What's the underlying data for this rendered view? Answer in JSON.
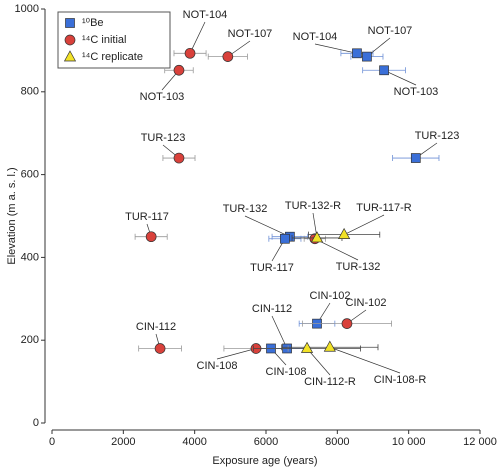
{
  "chart_data": {
    "type": "scatter",
    "x_label": "Exposure age (years)",
    "y_label": "Elevation (m a. s. l.)",
    "xlim": [
      0,
      12000
    ],
    "xticks": [
      0,
      2000,
      4000,
      6000,
      8000,
      {
        "value": 10000,
        "label": "10 000"
      },
      {
        "value": 12000,
        "label": "12 000"
      }
    ],
    "ylim": [
      0,
      1000
    ],
    "yticks": [
      0,
      200,
      400,
      600,
      800,
      1000
    ],
    "legend": "upper left",
    "series": [
      {
        "name": "¹⁰Be",
        "color": "#3a6fd8",
        "marker": "square",
        "labels": [
          "NOT-104",
          "NOT-107",
          "NOT-103",
          "TUR-123",
          "TUR-132",
          "TUR-117",
          "CIN-102",
          "CIN-112",
          "CIN-108"
        ],
        "x": [
          8550,
          8830,
          9310,
          10200,
          6670,
          6530,
          7430,
          6590,
          6140
        ],
        "values": [
          893,
          885,
          852,
          640,
          450,
          445,
          240,
          180,
          180
        ],
        "errors": [
          450,
          450,
          600,
          650,
          500,
          450,
          500,
          500,
          500
        ]
      },
      {
        "name": "¹⁴C initial",
        "color": "#d9413b",
        "marker": "circle",
        "labels": [
          "NOT-104",
          "NOT-107",
          "NOT-103",
          "TUR-123",
          "TUR-117",
          "TUR-132",
          "CIN-102",
          "CIN-112",
          "CIN-108"
        ],
        "x": [
          3870,
          4930,
          3560,
          3560,
          2780,
          7370,
          8270,
          3030,
          5720
        ],
        "values": [
          893,
          885,
          852,
          640,
          450,
          445,
          240,
          180,
          180
        ],
        "errors": [
          450,
          550,
          400,
          450,
          450,
          300,
          1250,
          600,
          900
        ]
      },
      {
        "name": "¹⁴C replicate",
        "color": "#f2e227",
        "marker": "triangle",
        "labels": [
          "TUR-132-R",
          "TUR-117-R",
          "CIN-112-R",
          "CIN-108-R"
        ],
        "x": [
          7430,
          8190,
          7150,
          7790
        ],
        "values": [
          447,
          455,
          180,
          183
        ],
        "errors": [
          700,
          1000,
          1500,
          1350
        ]
      }
    ]
  }
}
